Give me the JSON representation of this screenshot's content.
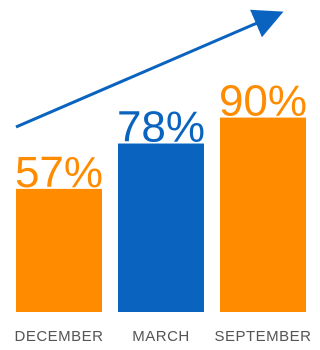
{
  "chart_data": {
    "type": "bar",
    "categories": [
      "DECEMBER",
      "MARCH",
      "SEPTEMBER"
    ],
    "values": [
      57,
      78,
      90
    ],
    "value_labels": [
      "57%",
      "78%",
      "90%"
    ],
    "bar_colors": [
      "#ff8c00",
      "#0a64bf",
      "#ff8c00"
    ],
    "arrow_color": "#0a64bf",
    "ylim": [
      0,
      100
    ],
    "grid": false,
    "title": "",
    "xlabel": "",
    "ylabel": ""
  }
}
